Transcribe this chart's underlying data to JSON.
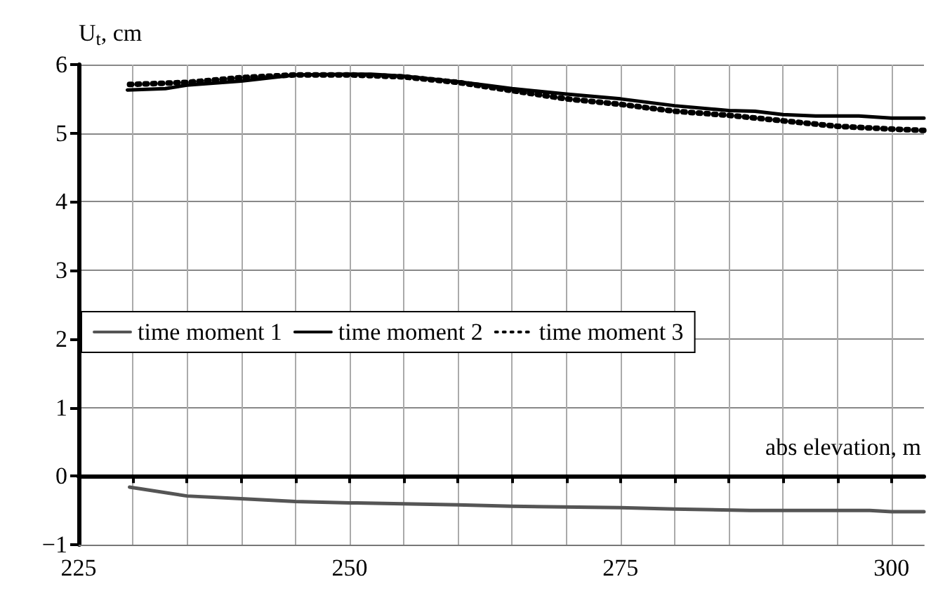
{
  "chart_data": {
    "type": "line",
    "ylabel": "U$_{t}$, cm",
    "xlabel": "abs elevation, m",
    "xlim": [
      225,
      303
    ],
    "ylim": [
      -1,
      6
    ],
    "xticks": [
      225,
      {
        "value": 230,
        "label": null
      },
      {
        "value": 235,
        "label": null
      },
      {
        "value": 240,
        "label": null
      },
      {
        "value": 245,
        "label": null
      },
      250,
      {
        "value": 255,
        "label": null
      },
      {
        "value": 260,
        "label": null
      },
      {
        "value": 265,
        "label": null
      },
      {
        "value": 270,
        "label": null
      },
      275,
      {
        "value": 280,
        "label": null
      },
      {
        "value": 285,
        "label": null
      },
      {
        "value": 290,
        "label": null
      },
      {
        "value": 295,
        "label": null
      },
      300
    ],
    "yticks": [
      -1,
      0,
      1,
      2,
      3,
      4,
      5,
      6
    ],
    "grid": true,
    "legend": "left",
    "marker": "none",
    "series": [
      {
        "name": "time moment 1",
        "color": "#555555",
        "line_style": "solid",
        "x": [
          229.7,
          235,
          240,
          245,
          250,
          260,
          265,
          275,
          280,
          287,
          298,
          300,
          303
        ],
        "values": [
          -0.16,
          -0.29,
          -0.33,
          -0.37,
          -0.39,
          -0.42,
          -0.44,
          -0.46,
          -0.48,
          -0.5,
          -0.5,
          -0.52,
          -0.52
        ]
      },
      {
        "name": "time moment 2",
        "color": "#000000",
        "line_style": "solid",
        "x": [
          229.5,
          233,
          235,
          240,
          245,
          250,
          252,
          255,
          260,
          262.5,
          265,
          270,
          275,
          280,
          285,
          287.4,
          290,
          293,
          297,
          300,
          303
        ],
        "values": [
          5.63,
          5.65,
          5.7,
          5.76,
          5.85,
          5.86,
          5.86,
          5.83,
          5.75,
          5.7,
          5.65,
          5.57,
          5.5,
          5.4,
          5.33,
          5.32,
          5.27,
          5.25,
          5.25,
          5.22,
          5.22
        ]
      },
      {
        "name": "time moment 3",
        "color": "#000000",
        "line_style": "dotted",
        "x": [
          229.7,
          235,
          240,
          245,
          250,
          255,
          260,
          265,
          270,
          275,
          280,
          285,
          290,
          295,
          300,
          303
        ],
        "values": [
          5.71,
          5.74,
          5.81,
          5.85,
          5.85,
          5.82,
          5.74,
          5.62,
          5.5,
          5.42,
          5.32,
          5.26,
          5.18,
          5.1,
          5.06,
          5.04
        ]
      }
    ]
  }
}
